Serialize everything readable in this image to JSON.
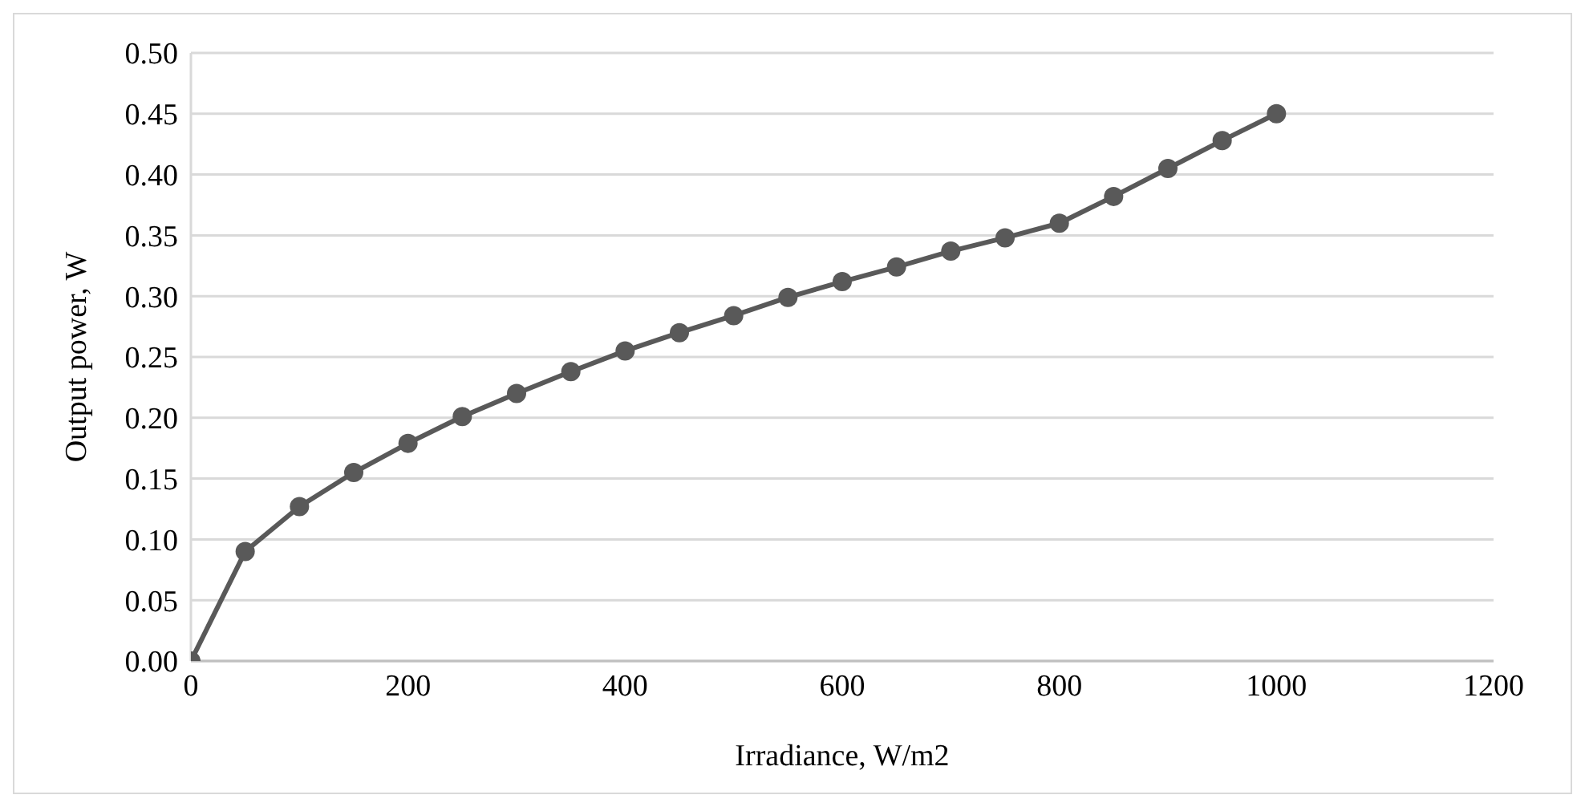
{
  "chart_data": {
    "type": "line",
    "xlabel": "Irradiance, W/m2",
    "ylabel": "Output power, W",
    "x": [
      0,
      50,
      100,
      150,
      200,
      250,
      300,
      350,
      400,
      450,
      500,
      550,
      600,
      650,
      700,
      750,
      800,
      850,
      900,
      950,
      1000
    ],
    "series": [
      {
        "color": "#595959",
        "values": [
          0,
          0.09,
          0.127,
          0.155,
          0.179,
          0.201,
          0.22,
          0.238,
          0.255,
          0.27,
          0.284,
          0.299,
          0.312,
          0.324,
          0.337,
          0.348,
          0.36,
          0.382,
          0.405,
          0.428,
          0.45
        ]
      }
    ],
    "xlim": [
      0,
      1200
    ],
    "xticks": [
      0,
      200,
      400,
      600,
      800,
      1000,
      1200
    ],
    "ylim": [
      0,
      0.5
    ],
    "yticks": [
      {
        "value": 0,
        "label": "0.00"
      },
      {
        "value": 0.05,
        "label": "0.05"
      },
      {
        "value": 0.1,
        "label": "0.10"
      },
      {
        "value": 0.15,
        "label": "0.15"
      },
      {
        "value": 0.2,
        "label": "0.20"
      },
      {
        "value": 0.25,
        "label": "0.25"
      },
      {
        "value": 0.3,
        "label": "0.30"
      },
      {
        "value": 0.35,
        "label": "0.35"
      },
      {
        "value": 0.4,
        "label": "0.40"
      },
      {
        "value": 0.45,
        "label": "0.45"
      },
      {
        "value": 0.5,
        "label": "0.50"
      }
    ],
    "grid": "y",
    "marker": "circle",
    "line_style": "solid",
    "legend": false
  }
}
